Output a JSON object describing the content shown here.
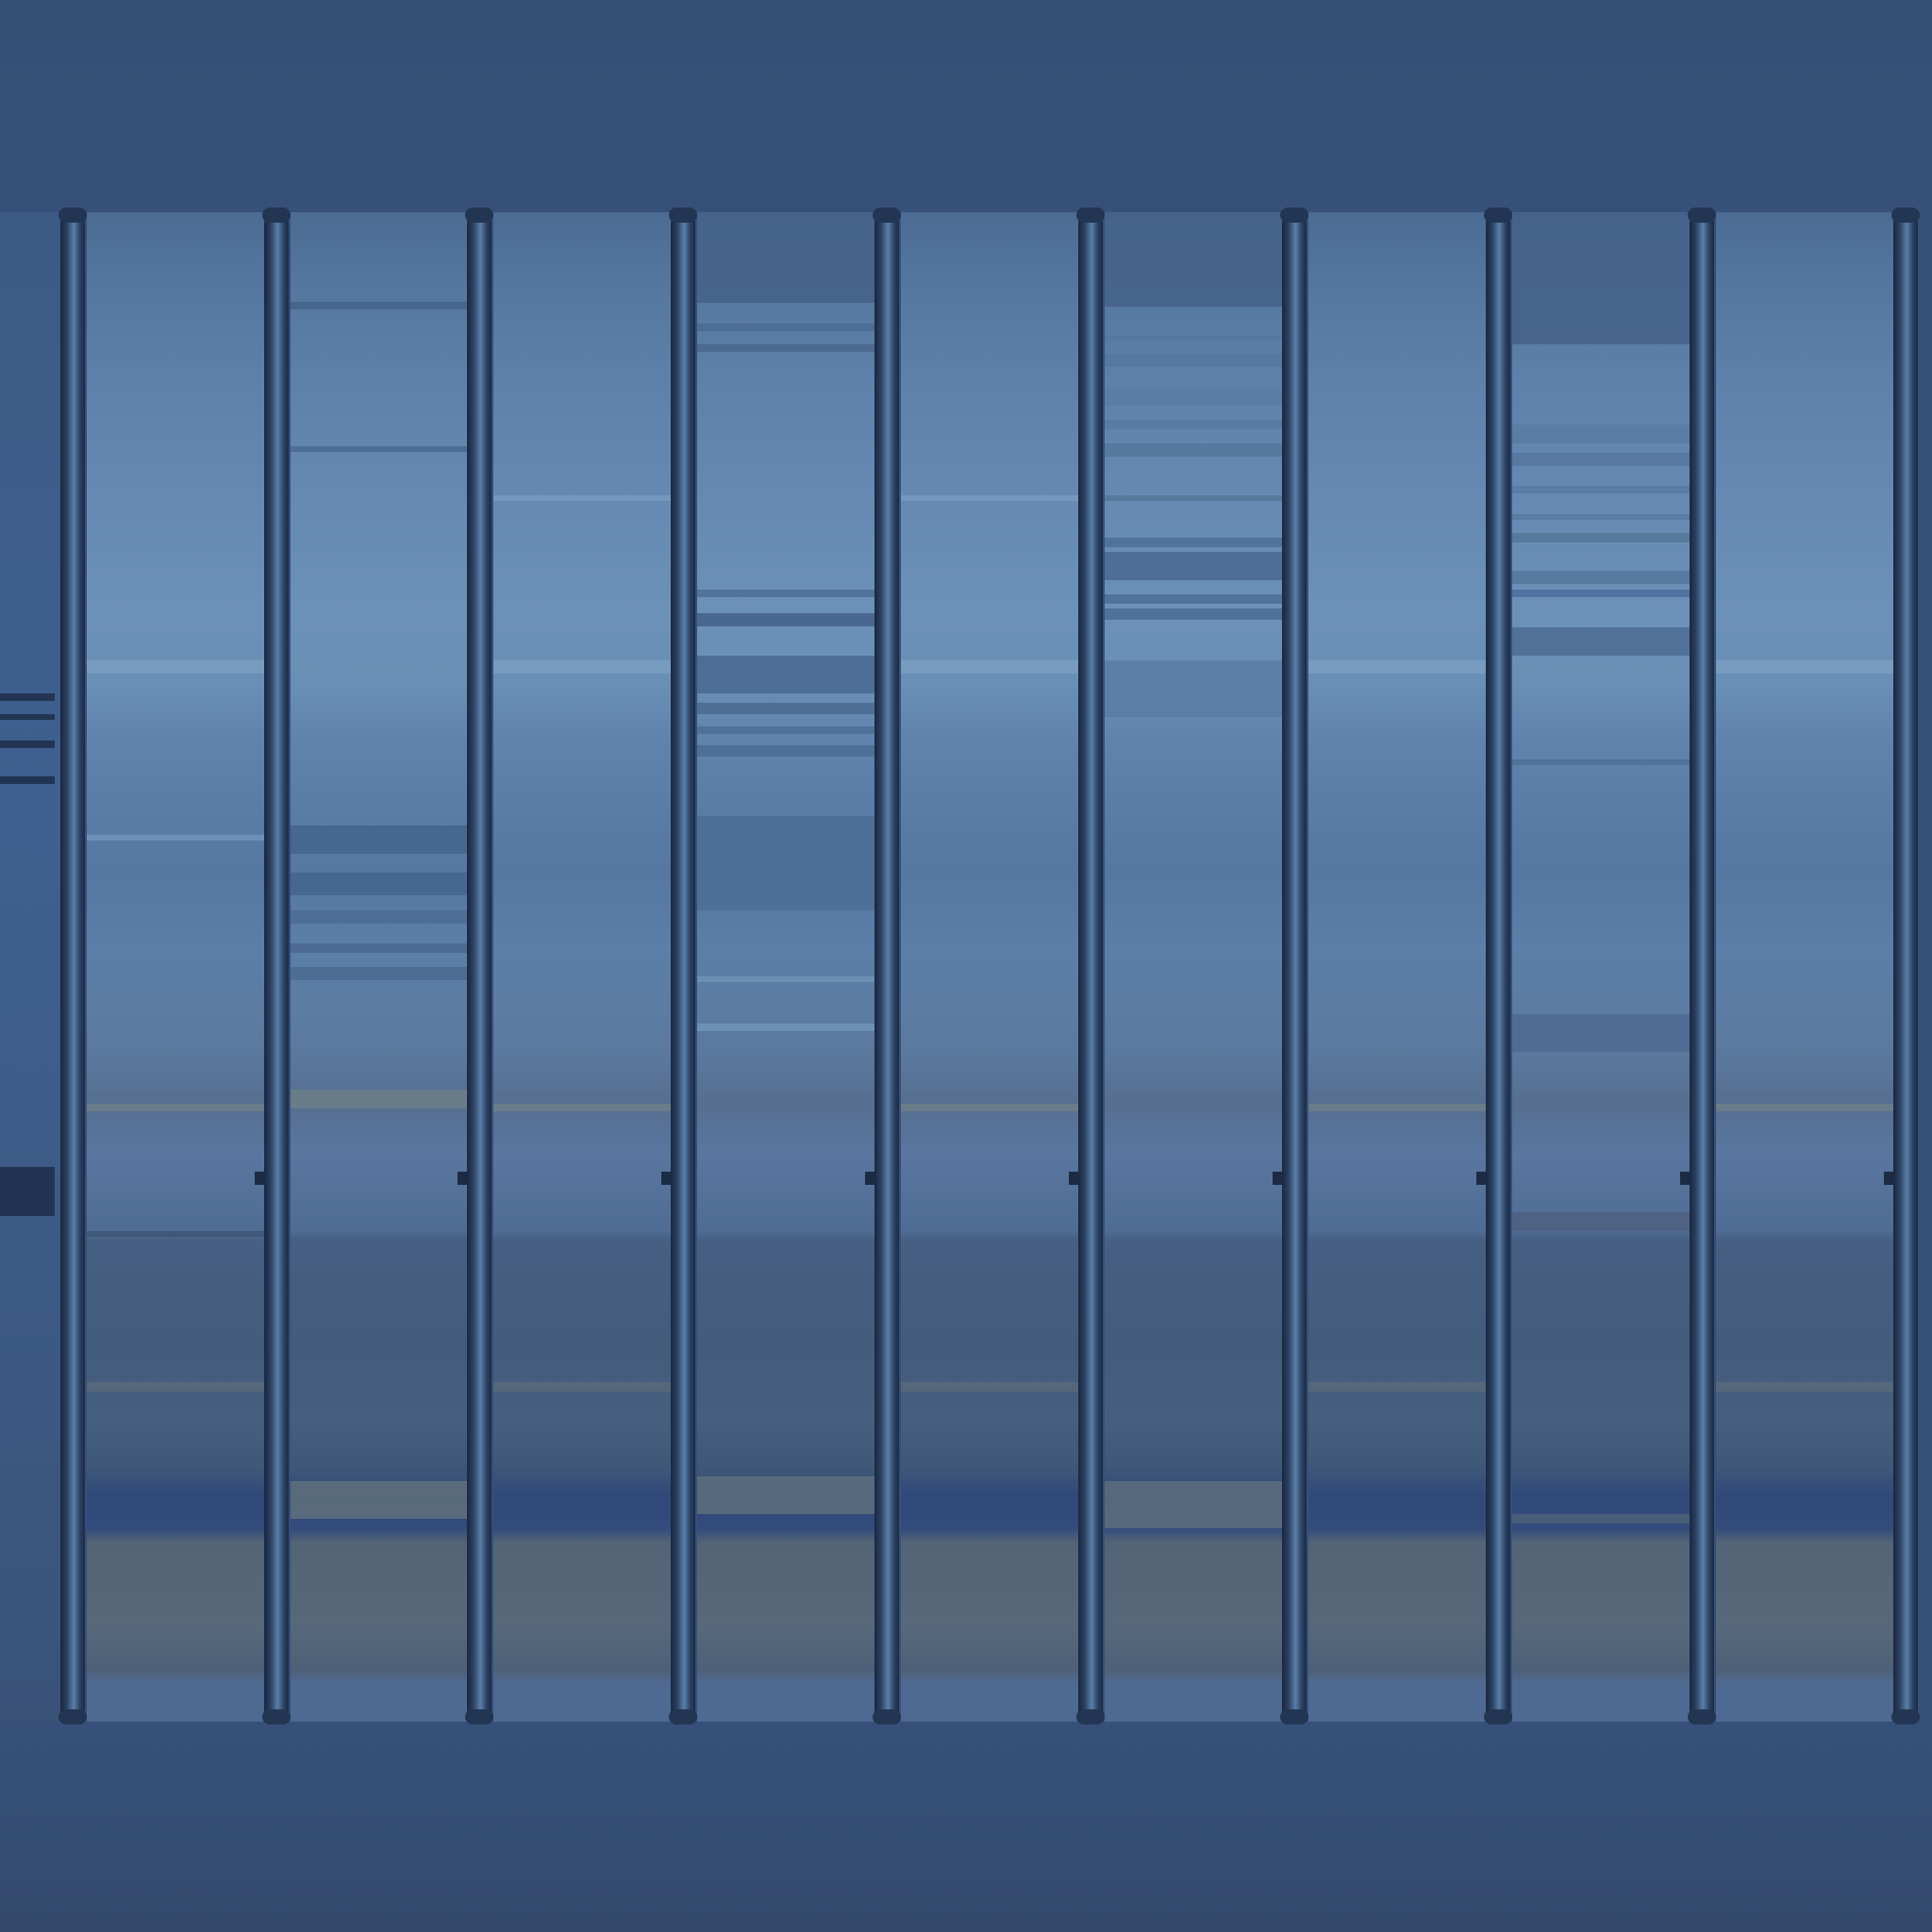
{
  "scene": {
    "subject": "vertical-bars-over-blurred-horizontal-stripes",
    "background_color": "#344d70",
    "bar_color": "#1f2f4a",
    "bar_highlight_color": "#5a7ea8",
    "bar_count": 10,
    "panel_count": 9,
    "palette": [
      "#4a6a92",
      "#5a7ba4",
      "#6a8db4",
      "#7297bb",
      "#456387",
      "#3d5676",
      "#55677a",
      "#31497a"
    ]
  }
}
